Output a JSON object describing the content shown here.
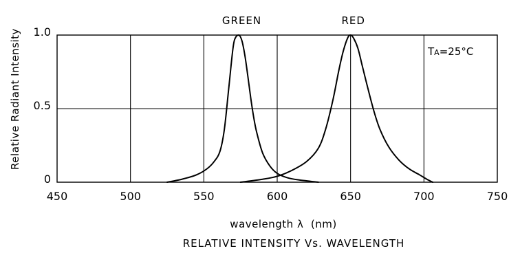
{
  "chart_data": {
    "type": "line",
    "title": "RELATIVE INTENSITY Vs. WAVELENGTH",
    "xlabel": "wavelength λ  (nm)",
    "ylabel": "Relative Radiant Intensity",
    "xlim": [
      450,
      750
    ],
    "ylim": [
      0,
      1.0
    ],
    "x_ticks": [
      450,
      500,
      550,
      600,
      650,
      700,
      750
    ],
    "x_tick_labels": [
      "450",
      "500",
      "550",
      "600",
      "650",
      "700",
      "750"
    ],
    "y_ticks": [
      0,
      0.5,
      1.0
    ],
    "y_tick_labels": [
      "0",
      "0.5",
      "1.0"
    ],
    "grid": true,
    "annotation": {
      "main": "T",
      "sub": "A",
      "rest": "=25°C",
      "placement": "top-right"
    },
    "series": [
      {
        "name": "GREEN",
        "x": [
          525,
          535,
          545,
          552,
          557,
          561,
          564,
          567,
          570,
          572,
          574,
          576,
          578,
          580,
          582,
          584,
          586,
          590,
          595,
          600,
          607,
          615,
          628
        ],
        "y": [
          0.0,
          0.02,
          0.05,
          0.09,
          0.14,
          0.21,
          0.36,
          0.64,
          0.92,
          0.99,
          1.0,
          0.96,
          0.86,
          0.72,
          0.57,
          0.44,
          0.34,
          0.2,
          0.11,
          0.06,
          0.03,
          0.015,
          0.0
        ]
      },
      {
        "name": "RED",
        "x": [
          575,
          590,
          600,
          610,
          620,
          628,
          633,
          638,
          642,
          645,
          648,
          650,
          652,
          655,
          658,
          662,
          666,
          670,
          676,
          683,
          690,
          697,
          702,
          706
        ],
        "y": [
          0.0,
          0.02,
          0.04,
          0.08,
          0.14,
          0.23,
          0.36,
          0.56,
          0.76,
          0.89,
          0.98,
          1.0,
          0.98,
          0.91,
          0.79,
          0.63,
          0.48,
          0.36,
          0.24,
          0.15,
          0.09,
          0.05,
          0.02,
          0.0
        ]
      }
    ]
  }
}
